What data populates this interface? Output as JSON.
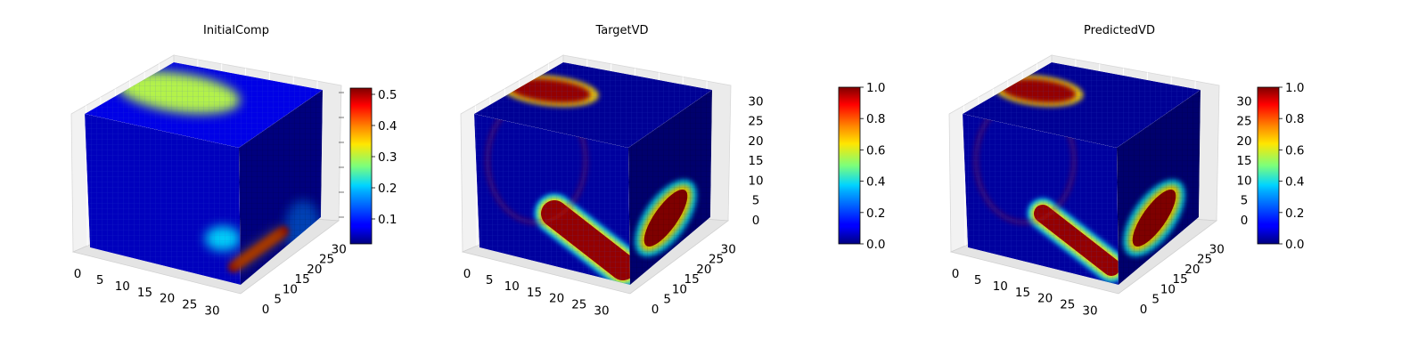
{
  "figure": {
    "panel_count": 3
  },
  "chart_data": [
    {
      "type": "heatmap",
      "subtype": "3d-voxel-cube",
      "title": "InitialComp",
      "colormap": "jet",
      "axes": {
        "x": {
          "range": [
            0,
            31
          ],
          "ticks": [
            0,
            5,
            10,
            15,
            20,
            25,
            30
          ],
          "tick_labels": [
            "0",
            "5",
            "10",
            "15",
            "20",
            "25",
            "30"
          ]
        },
        "y": {
          "range": [
            0,
            31
          ],
          "ticks": [
            0,
            5,
            10,
            15,
            20,
            25,
            30
          ],
          "tick_labels": [
            "0",
            "5",
            "10",
            "15",
            "20",
            "25",
            "30"
          ]
        },
        "z": {
          "range": [
            0,
            31
          ],
          "ticks": [],
          "tick_labels": []
        }
      },
      "colorbar": {
        "range": [
          0.02,
          0.52
        ],
        "ticks": [
          0.1,
          0.2,
          0.3,
          0.4,
          0.5
        ],
        "tick_labels": [
          "0.1",
          "0.2",
          "0.3",
          "0.4",
          "0.5"
        ]
      },
      "features": [
        {
          "face": "top",
          "shape": "ellipse",
          "value": 0.3
        },
        {
          "face": "front",
          "shape": "band",
          "value": 0.52
        }
      ],
      "grid": true,
      "background_value": 0.03
    },
    {
      "type": "heatmap",
      "subtype": "3d-voxel-cube",
      "title": "TargetVD",
      "colormap": "jet",
      "axes": {
        "x": {
          "range": [
            0,
            31
          ],
          "ticks": [
            0,
            5,
            10,
            15,
            20,
            25,
            30
          ],
          "tick_labels": [
            "0",
            "5",
            "10",
            "15",
            "20",
            "25",
            "30"
          ]
        },
        "y": {
          "range": [
            0,
            31
          ],
          "ticks": [
            0,
            5,
            10,
            15,
            20,
            25,
            30
          ],
          "tick_labels": [
            "0",
            "5",
            "10",
            "15",
            "20",
            "25",
            "30"
          ]
        },
        "z": {
          "range": [
            0,
            31
          ],
          "ticks": [
            0,
            5,
            10,
            15,
            20,
            25,
            30
          ],
          "tick_labels": [
            "0",
            "5",
            "10",
            "15",
            "20",
            "25",
            "30"
          ]
        }
      },
      "colorbar": {
        "range": [
          0,
          1
        ],
        "ticks": [
          0,
          0.2,
          0.4,
          0.6,
          0.8,
          1.0
        ],
        "tick_labels": [
          "0.0",
          "0.2",
          "0.4",
          "0.6",
          "0.8",
          "1.0"
        ]
      },
      "features": [
        {
          "face": "top",
          "shape": "ellipse",
          "value": 1.0
        },
        {
          "face": "front",
          "shape": "band",
          "value": 1.0
        },
        {
          "face": "side",
          "shape": "ellipse",
          "value": 1.0
        }
      ],
      "grid": true,
      "background_value": 0.0
    },
    {
      "type": "heatmap",
      "subtype": "3d-voxel-cube",
      "title": "PredictedVD",
      "colormap": "jet",
      "axes": {
        "x": {
          "range": [
            0,
            31
          ],
          "ticks": [
            0,
            5,
            10,
            15,
            20,
            25,
            30
          ],
          "tick_labels": [
            "0",
            "5",
            "10",
            "15",
            "20",
            "25",
            "30"
          ]
        },
        "y": {
          "range": [
            0,
            31
          ],
          "ticks": [
            0,
            5,
            10,
            15,
            20,
            25,
            30
          ],
          "tick_labels": [
            "0",
            "5",
            "10",
            "15",
            "20",
            "25",
            "30"
          ]
        },
        "z": {
          "range": [
            0,
            31
          ],
          "ticks": [
            0,
            5,
            10,
            15,
            20,
            25,
            30
          ],
          "tick_labels": [
            "0",
            "5",
            "10",
            "15",
            "20",
            "25",
            "30"
          ]
        }
      },
      "colorbar": {
        "range": [
          0,
          1
        ],
        "ticks": [
          0,
          0.2,
          0.4,
          0.6,
          0.8,
          1.0
        ],
        "tick_labels": [
          "0.0",
          "0.2",
          "0.4",
          "0.6",
          "0.8",
          "1.0"
        ]
      },
      "features": [
        {
          "face": "top",
          "shape": "ellipse",
          "value": 1.0
        },
        {
          "face": "front",
          "shape": "band",
          "value": 1.0
        },
        {
          "face": "side",
          "shape": "ellipse",
          "value": 1.0
        }
      ],
      "grid": true,
      "background_value": 0.0
    }
  ]
}
